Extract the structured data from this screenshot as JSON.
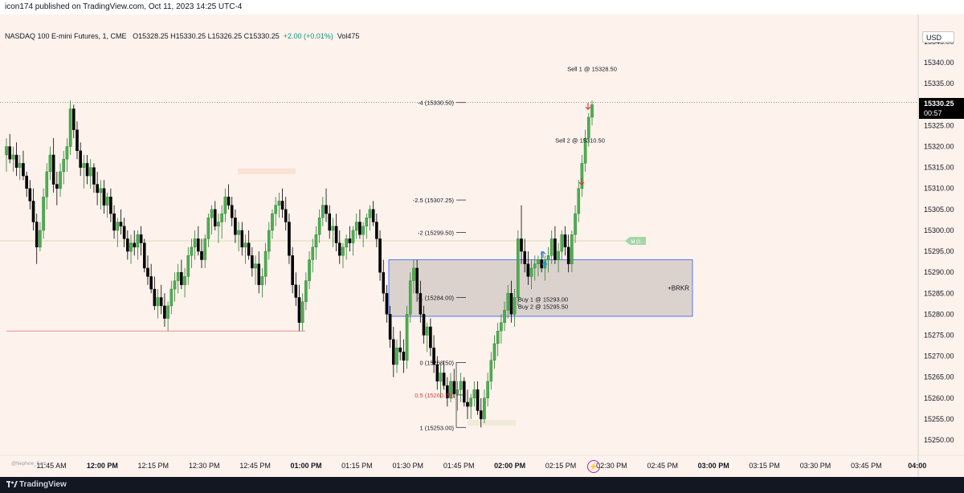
{
  "header": {
    "published_text": "icon174 published on TradingView.com, Oct 11, 2023 14:25 UTC-4"
  },
  "legend": {
    "symbol": "NASDAQ 100 E-mini Futures, 1, CME",
    "ohlc": "O15328.25  H15330.25  L15326.25  C15330.25",
    "change": "+2.00 (+0.01%)",
    "volume": "Vol475"
  },
  "currency": "USD",
  "price_label": {
    "price": "15330.25",
    "countdown": "00:57"
  },
  "watermark": "@Nephew_Sam_",
  "bolt_icon": "⚡",
  "footer": {
    "logo_text": "TradingView"
  },
  "colors": {
    "background": "#fdf2ec",
    "up": "#26a69a",
    "up_body": "#4caf50",
    "down": "#000000",
    "zone_fill": "#d6ccc8",
    "zone_border": "#2962ff",
    "sell_arrow": "#e53935",
    "buy_arrow": "#1e88e5"
  },
  "chart_data": {
    "type": "candlestick",
    "instrument": "NASDAQ 100 E-mini Futures",
    "interval": "1",
    "last_price": 15330.25,
    "y_ticks": [
      15345.0,
      15340.0,
      15335.0,
      15330.0,
      15325.0,
      15320.0,
      15315.0,
      15310.0,
      15305.0,
      15300.0,
      15295.0,
      15290.0,
      15285.0,
      15280.0,
      15275.0,
      15270.0,
      15265.0,
      15260.0,
      15255.0,
      15250.0
    ],
    "x_ticks": [
      {
        "label": "11:45 AM",
        "bold": false
      },
      {
        "label": "12:00 PM",
        "bold": true
      },
      {
        "label": "12:15 PM",
        "bold": false
      },
      {
        "label": "12:30 PM",
        "bold": false
      },
      {
        "label": "12:45 PM",
        "bold": false
      },
      {
        "label": "01:00 PM",
        "bold": true
      },
      {
        "label": "01:15 PM",
        "bold": false
      },
      {
        "label": "01:30 PM",
        "bold": false
      },
      {
        "label": "01:45 PM",
        "bold": false
      },
      {
        "label": "02:00 PM",
        "bold": true
      },
      {
        "label": "02:15 PM",
        "bold": false
      },
      {
        "label": "02:30 PM",
        "bold": false
      },
      {
        "label": "02:45 PM",
        "bold": false
      },
      {
        "label": "03:00 PM",
        "bold": true
      },
      {
        "label": "03:15 PM",
        "bold": false
      },
      {
        "label": "03:30 PM",
        "bold": false
      },
      {
        "label": "03:45 PM",
        "bold": false
      },
      {
        "label": "04:00",
        "bold": true
      }
    ],
    "fib_levels": [
      {
        "label": "-4 (15330.50)",
        "price": 15330.5
      },
      {
        "label": "-2.5 (15307.25)",
        "price": 15307.25
      },
      {
        "label": "-2 (15299.50)",
        "price": 15299.5
      },
      {
        "label": "-1 (15284.00)",
        "price": 15284.0
      },
      {
        "label": "0 (15268.50)",
        "price": 15268.5
      },
      {
        "label": "0.5 (15260.75)",
        "price": 15260.75
      },
      {
        "label": "1 (15253.00)",
        "price": 15253.0
      }
    ],
    "zone": {
      "label": "+BRKR",
      "top": 15293.0,
      "bottom": 15279.5
    },
    "trades": [
      {
        "label": "Sell 1 @ 15328.50",
        "side": "sell",
        "price": 15328.5
      },
      {
        "label": "Sell 2 @ 15310.50",
        "side": "sell",
        "price": 15310.5
      },
      {
        "label": "Buy 1 @ 15293.00",
        "side": "buy",
        "price": 15293.0
      },
      {
        "label": "Buy 2 @ 15295.50",
        "side": "buy",
        "price": 15295.5
      }
    ],
    "mo_label": "M.O.",
    "mo_price": 15297.5,
    "support_price": 15276.0,
    "resistance_price": 15330.5,
    "candles": [
      [
        15318,
        15322,
        15314,
        15320
      ],
      [
        15320,
        15323,
        15316,
        15317
      ],
      [
        15317,
        15320,
        15314,
        15318
      ],
      [
        15318,
        15321,
        15313,
        15315
      ],
      [
        15315,
        15318,
        15312,
        15316
      ],
      [
        15316,
        15319,
        15312,
        15313
      ],
      [
        15313,
        15314,
        15308,
        15310
      ],
      [
        15310,
        15312,
        15305,
        15307
      ],
      [
        15307,
        15310,
        15300,
        15302
      ],
      [
        15302,
        15304,
        15292,
        15296
      ],
      [
        15296,
        15302,
        15295,
        15300
      ],
      [
        15300,
        15310,
        15298,
        15308
      ],
      [
        15308,
        15316,
        15305,
        15314
      ],
      [
        15314,
        15320,
        15312,
        15318
      ],
      [
        15318,
        15322,
        15309,
        15311
      ],
      [
        15311,
        15314,
        15306,
        15310
      ],
      [
        15310,
        15316,
        15308,
        15314
      ],
      [
        15314,
        15319,
        15311,
        15317
      ],
      [
        15317,
        15322,
        15314,
        15320
      ],
      [
        15320,
        15331,
        15318,
        15329
      ],
      [
        15329,
        15330,
        15322,
        15324
      ],
      [
        15324,
        15326,
        15317,
        15319
      ],
      [
        15319,
        15321,
        15313,
        15315
      ],
      [
        15315,
        15318,
        15310,
        15316
      ],
      [
        15316,
        15318,
        15311,
        15313
      ],
      [
        15313,
        15317,
        15310,
        15315
      ],
      [
        15315,
        15316,
        15309,
        15311
      ],
      [
        15311,
        15314,
        15306,
        15309
      ],
      [
        15309,
        15312,
        15305,
        15310
      ],
      [
        15310,
        15312,
        15304,
        15306
      ],
      [
        15306,
        15309,
        15303,
        15308
      ],
      [
        15308,
        15310,
        15302,
        15304
      ],
      [
        15304,
        15306,
        15298,
        15300
      ],
      [
        15300,
        15303,
        15296,
        15302
      ],
      [
        15302,
        15305,
        15299,
        15301
      ],
      [
        15301,
        15303,
        15296,
        15298
      ],
      [
        15298,
        15300,
        15293,
        15295
      ],
      [
        15295,
        15299,
        15292,
        15297
      ],
      [
        15297,
        15300,
        15294,
        15296
      ],
      [
        15296,
        15300,
        15293,
        15299
      ],
      [
        15299,
        15301,
        15294,
        15297
      ],
      [
        15297,
        15298,
        15290,
        15291
      ],
      [
        15291,
        15294,
        15287,
        15289
      ],
      [
        15289,
        15292,
        15285,
        15286
      ],
      [
        15286,
        15289,
        15281,
        15282
      ],
      [
        15282,
        15286,
        15279,
        15284
      ],
      [
        15284,
        15287,
        15280,
        15282
      ],
      [
        15282,
        15285,
        15277,
        15279
      ],
      [
        15279,
        15283,
        15276,
        15282
      ],
      [
        15282,
        15288,
        15280,
        15286
      ],
      [
        15286,
        15290,
        15283,
        15288
      ],
      [
        15288,
        15292,
        15285,
        15290
      ],
      [
        15290,
        15293,
        15286,
        15287
      ],
      [
        15287,
        15291,
        15284,
        15289
      ],
      [
        15289,
        15296,
        15287,
        15294
      ],
      [
        15294,
        15298,
        15291,
        15296
      ],
      [
        15296,
        15300,
        15293,
        15298
      ],
      [
        15298,
        15301,
        15294,
        15295
      ],
      [
        15295,
        15298,
        15291,
        15293
      ],
      [
        15293,
        15299,
        15291,
        15298
      ],
      [
        15298,
        15304,
        15296,
        15303
      ],
      [
        15303,
        15306,
        15299,
        15305
      ],
      [
        15305,
        15307,
        15300,
        15301
      ],
      [
        15301,
        15304,
        15297,
        15302
      ],
      [
        15302,
        15306,
        15298,
        15304
      ],
      [
        15304,
        15310,
        15302,
        15308
      ],
      [
        15308,
        15311,
        15305,
        15306
      ],
      [
        15306,
        15308,
        15301,
        15303
      ],
      [
        15303,
        15305,
        15297,
        15299
      ],
      [
        15299,
        15302,
        15295,
        15300
      ],
      [
        15300,
        15302,
        15294,
        15296
      ],
      [
        15296,
        15299,
        15292,
        15297
      ],
      [
        15297,
        15300,
        15293,
        15294
      ],
      [
        15294,
        15296,
        15289,
        15291
      ],
      [
        15291,
        15294,
        15287,
        15292
      ],
      [
        15292,
        15295,
        15285,
        15287
      ],
      [
        15287,
        15291,
        15284,
        15289
      ],
      [
        15289,
        15297,
        15287,
        15295
      ],
      [
        15295,
        15302,
        15293,
        15300
      ],
      [
        15300,
        15305,
        15298,
        15304
      ],
      [
        15304,
        15308,
        15301,
        15306
      ],
      [
        15306,
        15309,
        15303,
        15307
      ],
      [
        15307,
        15310,
        15303,
        15305
      ],
      [
        15305,
        15308,
        15300,
        15302
      ],
      [
        15302,
        15304,
        15292,
        15294
      ],
      [
        15294,
        15296,
        15285,
        15287
      ],
      [
        15287,
        15290,
        15282,
        15284
      ],
      [
        15284,
        15287,
        15276,
        15278
      ],
      [
        15278,
        15285,
        15276,
        15283
      ],
      [
        15283,
        15290,
        15281,
        15288
      ],
      [
        15288,
        15295,
        15286,
        15293
      ],
      [
        15293,
        15298,
        15290,
        15296
      ],
      [
        15296,
        15301,
        15293,
        15299
      ],
      [
        15299,
        15305,
        15297,
        15303
      ],
      [
        15303,
        15308,
        15301,
        15306
      ],
      [
        15306,
        15310,
        15302,
        15304
      ],
      [
        15304,
        15306,
        15298,
        15300
      ],
      [
        15300,
        15303,
        15296,
        15301
      ],
      [
        15301,
        15304,
        15295,
        15297
      ],
      [
        15297,
        15300,
        15292,
        15294
      ],
      [
        15294,
        15297,
        15291,
        15296
      ],
      [
        15296,
        15299,
        15293,
        15298
      ],
      [
        15298,
        15301,
        15295,
        15297
      ],
      [
        15297,
        15301,
        15294,
        15300
      ],
      [
        15300,
        15304,
        15298,
        15302
      ],
      [
        15302,
        15305,
        15298,
        15299
      ],
      [
        15299,
        15302,
        15296,
        15301
      ],
      [
        15301,
        15304,
        15298,
        15303
      ],
      [
        15303,
        15306,
        15300,
        15305
      ],
      [
        15305,
        15307,
        15301,
        15302
      ],
      [
        15302,
        15304,
        15296,
        15298
      ],
      [
        15298,
        15300,
        15288,
        15290
      ],
      [
        15290,
        15293,
        15283,
        15285
      ],
      [
        15285,
        15287,
        15278,
        15280
      ],
      [
        15280,
        15282,
        15272,
        15274
      ],
      [
        15274,
        15277,
        15265,
        15268
      ],
      [
        15268,
        15274,
        15266,
        15272
      ],
      [
        15272,
        15276,
        15269,
        15271
      ],
      [
        15271,
        15274,
        15266,
        15269
      ],
      [
        15269,
        15282,
        15267,
        15280
      ],
      [
        15280,
        15290,
        15278,
        15288
      ],
      [
        15288,
        15293,
        15285,
        15291
      ],
      [
        15291,
        15293,
        15283,
        15285
      ],
      [
        15285,
        15288,
        15278,
        15280
      ],
      [
        15280,
        15282,
        15273,
        15275
      ],
      [
        15275,
        15278,
        15271,
        15277
      ],
      [
        15277,
        15279,
        15270,
        15272
      ],
      [
        15272,
        15275,
        15266,
        15268
      ],
      [
        15268,
        15270,
        15262,
        15264
      ],
      [
        15264,
        15268,
        15260,
        15266
      ],
      [
        15266,
        15269,
        15262,
        15263
      ],
      [
        15263,
        15265,
        15258,
        15260
      ],
      [
        15260,
        15266,
        15259,
        15264
      ],
      [
        15264,
        15267,
        15260,
        15261
      ],
      [
        15261,
        15264,
        15257,
        15262
      ],
      [
        15262,
        15266,
        15259,
        15264
      ],
      [
        15264,
        15265,
        15258,
        15259
      ],
      [
        15259,
        15262,
        15255,
        15258
      ],
      [
        15258,
        15261,
        15255,
        15260
      ],
      [
        15260,
        15264,
        15258,
        15262
      ],
      [
        15262,
        15264,
        15256,
        15257
      ],
      [
        15257,
        15260,
        15253,
        15255
      ],
      [
        15255,
        15262,
        15254,
        15260
      ],
      [
        15260,
        15266,
        15258,
        15264
      ],
      [
        15264,
        15271,
        15262,
        15269
      ],
      [
        15269,
        15275,
        15267,
        15273
      ],
      [
        15273,
        15278,
        15270,
        15276
      ],
      [
        15276,
        15280,
        15273,
        15278
      ],
      [
        15278,
        15283,
        15276,
        15281
      ],
      [
        15281,
        15287,
        15279,
        15285
      ],
      [
        15285,
        15288,
        15278,
        15280
      ],
      [
        15280,
        15286,
        15277,
        15284
      ],
      [
        15284,
        15300,
        15282,
        15298
      ],
      [
        15298,
        15306,
        15292,
        15295
      ],
      [
        15295,
        15298,
        15290,
        15292
      ],
      [
        15292,
        15295,
        15287,
        15289
      ],
      [
        15289,
        15293,
        15286,
        15291
      ],
      [
        15291,
        15294,
        15288,
        15292
      ],
      [
        15292,
        15294,
        15289,
        15293
      ],
      [
        15293,
        15295,
        15290,
        15291
      ],
      [
        15291,
        15294,
        15288,
        15293
      ],
      [
        15293,
        15296,
        15290,
        15294
      ],
      [
        15294,
        15300,
        15292,
        15298
      ],
      [
        15298,
        15301,
        15292,
        15293
      ],
      [
        15293,
        15297,
        15290,
        15295
      ],
      [
        15295,
        15300,
        15293,
        15299
      ],
      [
        15299,
        15301,
        15294,
        15296
      ],
      [
        15296,
        15299,
        15290,
        15292
      ],
      [
        15292,
        15300,
        15290,
        15299
      ],
      [
        15299,
        15306,
        15297,
        15304
      ],
      [
        15304,
        15312,
        15302,
        15310
      ],
      [
        15310,
        15318,
        15308,
        15316
      ],
      [
        15316,
        15324,
        15314,
        15322
      ],
      [
        15322,
        15328,
        15320,
        15327
      ],
      [
        15327,
        15331,
        15325,
        15330
      ]
    ]
  }
}
